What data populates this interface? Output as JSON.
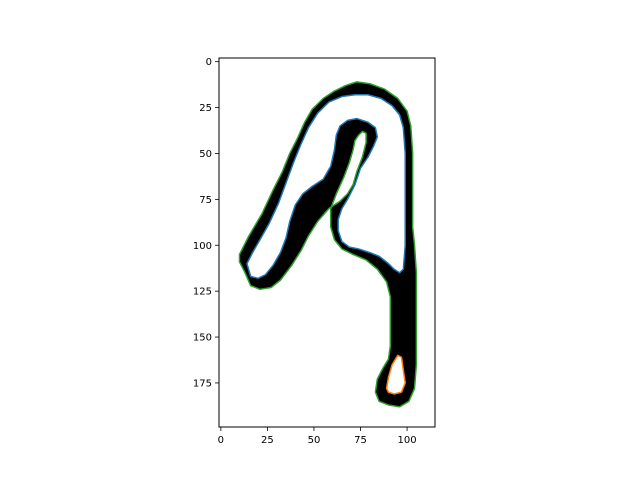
{
  "chart_data": {
    "type": "image-contour",
    "title": "",
    "xlabel": "",
    "ylabel": "",
    "xlim": [
      -1,
      115
    ],
    "ylim": [
      199,
      -2
    ],
    "y_inverted": true,
    "xticks": [
      0,
      25,
      50,
      75,
      100
    ],
    "yticks": [
      0,
      25,
      50,
      75,
      100,
      125,
      150,
      175
    ],
    "xtick_labels": [
      "0",
      "25",
      "50",
      "75",
      "100"
    ],
    "ytick_labels": [
      "0",
      "25",
      "50",
      "75",
      "100",
      "125",
      "150",
      "175"
    ],
    "grid": false,
    "legend": false,
    "background_image": "binary track mask (black pixels on white), shaped like the green outer contour with inner holes bounded by the blue and orange contours",
    "series": [
      {
        "color": "#2ca02c",
        "role": "outer boundary",
        "points": [
          [
            10,
            105
          ],
          [
            15,
            95
          ],
          [
            22,
            83
          ],
          [
            28,
            70
          ],
          [
            33,
            60
          ],
          [
            37,
            50
          ],
          [
            41,
            42
          ],
          [
            45,
            33
          ],
          [
            49,
            26
          ],
          [
            55,
            20
          ],
          [
            61,
            16
          ],
          [
            67,
            13
          ],
          [
            73,
            11
          ],
          [
            80,
            12
          ],
          [
            88,
            15
          ],
          [
            95,
            20
          ],
          [
            100,
            27
          ],
          [
            102,
            35
          ],
          [
            103,
            50
          ],
          [
            103,
            70
          ],
          [
            103,
            90
          ],
          [
            104,
            100
          ],
          [
            105,
            115
          ],
          [
            105,
            140
          ],
          [
            105,
            165
          ],
          [
            104,
            178
          ],
          [
            101,
            185
          ],
          [
            96,
            188
          ],
          [
            90,
            187
          ],
          [
            85,
            185
          ],
          [
            83,
            180
          ],
          [
            84,
            173
          ],
          [
            87,
            167
          ],
          [
            90,
            162
          ],
          [
            91,
            155
          ],
          [
            91,
            140
          ],
          [
            91,
            128
          ],
          [
            89,
            120
          ],
          [
            84,
            113
          ],
          [
            78,
            108
          ],
          [
            71,
            105
          ],
          [
            65,
            102
          ],
          [
            61,
            97
          ],
          [
            59,
            90
          ],
          [
            59,
            80
          ],
          [
            62,
            72
          ],
          [
            66,
            63
          ],
          [
            69,
            55
          ],
          [
            71,
            48
          ],
          [
            72,
            43
          ],
          [
            74,
            40
          ],
          [
            76,
            38
          ],
          [
            78,
            39
          ],
          [
            78,
            44
          ],
          [
            76,
            52
          ],
          [
            73,
            60
          ],
          [
            71,
            67
          ],
          [
            68,
            72
          ],
          [
            64,
            76
          ],
          [
            58,
            80
          ],
          [
            52,
            87
          ],
          [
            47,
            95
          ],
          [
            43,
            103
          ],
          [
            38,
            111
          ],
          [
            32,
            119
          ],
          [
            27,
            123
          ],
          [
            21,
            124
          ],
          [
            16,
            122
          ],
          [
            13,
            115
          ],
          [
            10,
            109
          ],
          [
            10,
            105
          ]
        ]
      },
      {
        "color": "#1f77b4",
        "role": "inner boundary",
        "points": [
          [
            16,
            117
          ],
          [
            14,
            110
          ],
          [
            17,
            104
          ],
          [
            21,
            97
          ],
          [
            26,
            88
          ],
          [
            31,
            77
          ],
          [
            35,
            66
          ],
          [
            39,
            55
          ],
          [
            43,
            45
          ],
          [
            47,
            36
          ],
          [
            52,
            28
          ],
          [
            58,
            22
          ],
          [
            65,
            19
          ],
          [
            72,
            18
          ],
          [
            79,
            18
          ],
          [
            86,
            20
          ],
          [
            92,
            24
          ],
          [
            96,
            29
          ],
          [
            98,
            36
          ],
          [
            99,
            50
          ],
          [
            99,
            70
          ],
          [
            99,
            90
          ],
          [
            99,
            100
          ],
          [
            98,
            113
          ],
          [
            96,
            115
          ],
          [
            93,
            113
          ],
          [
            90,
            110
          ],
          [
            85,
            106
          ],
          [
            80,
            104
          ],
          [
            74,
            102
          ],
          [
            69,
            101
          ],
          [
            65,
            98
          ],
          [
            63,
            92
          ],
          [
            63,
            86
          ],
          [
            65,
            80
          ],
          [
            68,
            75
          ],
          [
            72,
            67
          ],
          [
            75,
            58
          ],
          [
            79,
            52
          ],
          [
            82,
            46
          ],
          [
            84,
            41
          ],
          [
            83,
            36
          ],
          [
            79,
            33
          ],
          [
            73,
            31
          ],
          [
            68,
            32
          ],
          [
            64,
            35
          ],
          [
            62,
            40
          ],
          [
            61,
            48
          ],
          [
            59,
            57
          ],
          [
            55,
            64
          ],
          [
            49,
            68
          ],
          [
            44,
            72
          ],
          [
            40,
            78
          ],
          [
            37,
            87
          ],
          [
            35,
            96
          ],
          [
            32,
            104
          ],
          [
            28,
            111
          ],
          [
            24,
            116
          ],
          [
            20,
            118
          ],
          [
            16,
            117
          ]
        ]
      },
      {
        "color": "#ff7f0e",
        "role": "inner boundary",
        "points": [
          [
            89,
            178
          ],
          [
            90,
            172
          ],
          [
            92,
            165
          ],
          [
            95,
            160
          ],
          [
            97,
            161
          ],
          [
            98,
            168
          ],
          [
            99,
            175
          ],
          [
            97,
            180
          ],
          [
            93,
            181
          ],
          [
            90,
            180
          ],
          [
            89,
            178
          ]
        ]
      }
    ]
  }
}
